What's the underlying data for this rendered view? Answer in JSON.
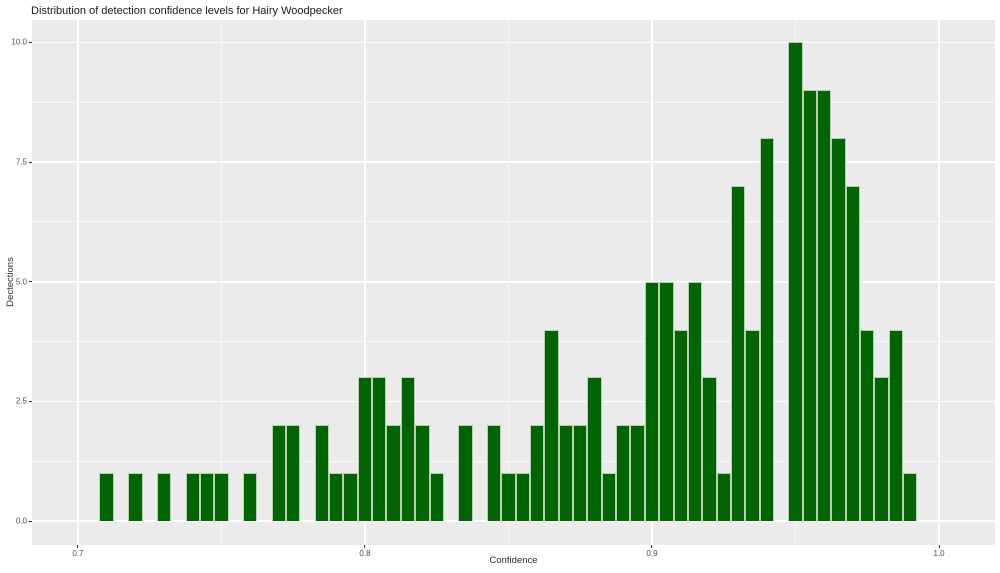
{
  "chart_data": {
    "type": "bar",
    "subtype": "histogram",
    "title": "Distribution of detection confidence levels for Hairy Woodpecker",
    "xlabel": "Confidence",
    "ylabel": "Dectections",
    "legend": "none",
    "grid": "on",
    "panel_bg": "#ebebeb",
    "grid_color": "#ffffff",
    "bar_color": "#006400",
    "bar_edge_color": "#b7cfb7",
    "tick_label_color": "#4d4d4d",
    "xlim": [
      0.684,
      1.0195
    ],
    "ylim": [
      -0.5,
      10.47
    ],
    "bin_width": 0.005,
    "x_ticks": {
      "values": [
        0.7,
        0.8,
        0.9,
        1.0
      ],
      "labels": [
        "0.7",
        "0.8",
        "0.9",
        "1.0"
      ]
    },
    "y_ticks": {
      "values": [
        0,
        2.5,
        5,
        7.5,
        10
      ],
      "labels": [
        "0.0",
        "2.5",
        "5.0",
        "7.5",
        "10.0"
      ]
    },
    "x_minor": [
      0.75,
      0.85,
      0.95
    ],
    "y_minor": [
      1.25,
      3.75,
      6.25,
      8.75
    ],
    "bins": {
      "centers": [
        0.71,
        0.715,
        0.72,
        0.725,
        0.73,
        0.735,
        0.74,
        0.745,
        0.75,
        0.755,
        0.76,
        0.765,
        0.77,
        0.775,
        0.78,
        0.785,
        0.79,
        0.795,
        0.8,
        0.805,
        0.81,
        0.815,
        0.82,
        0.825,
        0.83,
        0.835,
        0.84,
        0.845,
        0.85,
        0.855,
        0.86,
        0.865,
        0.87,
        0.875,
        0.88,
        0.885,
        0.89,
        0.895,
        0.9,
        0.905,
        0.91,
        0.915,
        0.92,
        0.925,
        0.93,
        0.935,
        0.94,
        0.945,
        0.95,
        0.955,
        0.96,
        0.965,
        0.97,
        0.975,
        0.98,
        0.985,
        0.99
      ],
      "counts": [
        1,
        0,
        1,
        0,
        1,
        0,
        1,
        1,
        1,
        0,
        1,
        0,
        2,
        2,
        0,
        2,
        1,
        1,
        3,
        3,
        2,
        3,
        2,
        1,
        0,
        2,
        0,
        2,
        1,
        1,
        2,
        4,
        2,
        2,
        3,
        1,
        2,
        2,
        5,
        5,
        4,
        5,
        3,
        1,
        7,
        4,
        8,
        0,
        10,
        9,
        9,
        8,
        7,
        4,
        3,
        4,
        1
      ]
    }
  }
}
